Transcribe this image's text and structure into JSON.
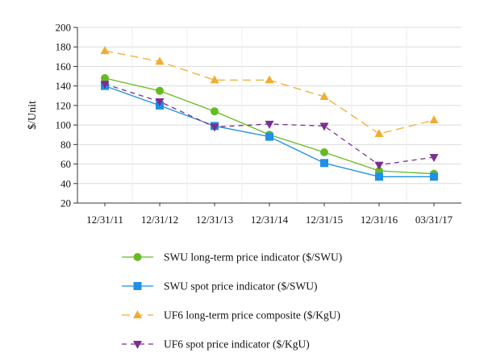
{
  "chart_data": {
    "type": "line",
    "title": "",
    "xlabel": "",
    "ylabel": "$/Unit",
    "ylim": [
      20,
      200
    ],
    "yticks": [
      20,
      40,
      60,
      80,
      100,
      120,
      140,
      160,
      180,
      200
    ],
    "categories": [
      "12/31/11",
      "12/31/12",
      "12/31/13",
      "12/31/14",
      "12/31/15",
      "12/31/16",
      "03/31/17"
    ],
    "grid": "horizontal",
    "legend_position": "bottom",
    "series": [
      {
        "name": "SWU long-term price indicator ($/SWU)",
        "values": [
          148,
          135,
          114,
          90,
          72,
          53,
          50
        ],
        "color": "#66bb22",
        "dash": "solid",
        "marker": "circle"
      },
      {
        "name": "SWU spot price indicator ($/SWU)",
        "values": [
          140,
          120,
          99,
          88,
          61,
          47,
          47
        ],
        "color": "#1e90e8",
        "dash": "solid",
        "marker": "square"
      },
      {
        "name": "UF6 long-term price composite ($/KgU)",
        "values": [
          176,
          165,
          146,
          146,
          129,
          91,
          105
        ],
        "color": "#f0ad32",
        "dash": "long-dash",
        "marker": "triangle-up"
      },
      {
        "name": "UF6 spot price indicator ($/KgU)",
        "values": [
          142,
          124,
          98,
          101,
          99,
          59,
          67
        ],
        "color": "#7a2f8f",
        "dash": "dash",
        "marker": "triangle-down"
      }
    ]
  }
}
